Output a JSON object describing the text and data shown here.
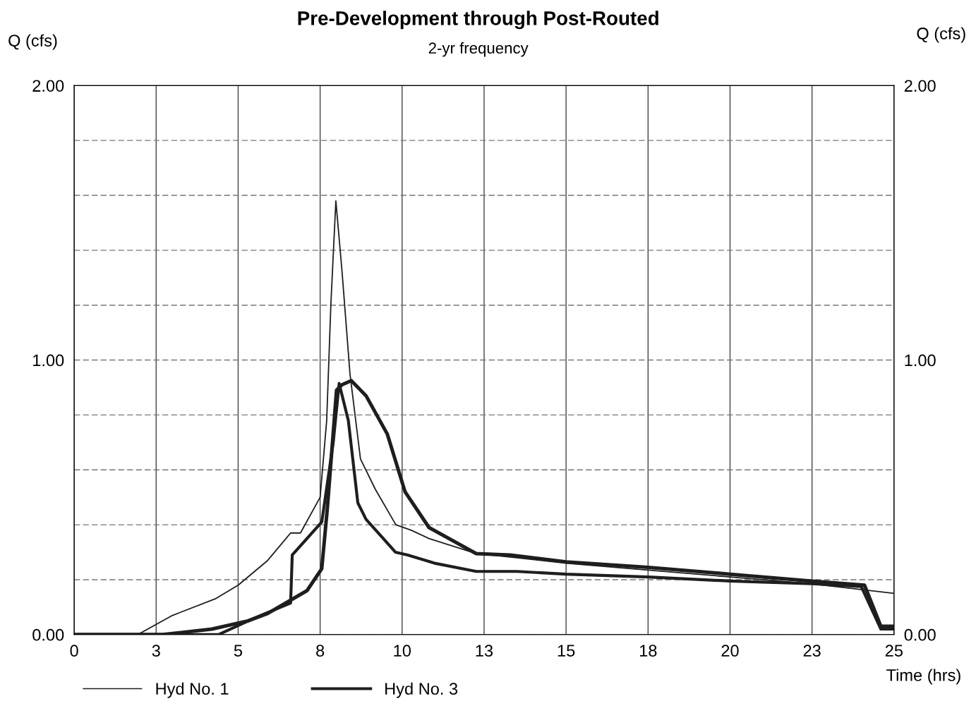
{
  "chart_data": {
    "type": "line",
    "title": "Pre-Development through Post-Routed",
    "subtitle": "2-yr frequency",
    "xlabel": "Time (hrs)",
    "ylabel": "Q (cfs)",
    "y2label": "Q (cfs)",
    "xlim": [
      0,
      25
    ],
    "xticks": [
      0,
      {
        "value": 2.5,
        "label": "3"
      },
      5,
      {
        "value": 7.5,
        "label": "8"
      },
      10,
      {
        "value": 12.5,
        "label": "13"
      },
      15,
      {
        "value": 17.5,
        "label": "18"
      },
      20,
      {
        "value": 22.5,
        "label": "23"
      },
      25
    ],
    "ylim": [
      0,
      2
    ],
    "yticks": [
      {
        "value": 0,
        "label": "0.00"
      },
      {
        "value": 0.2,
        "label": null
      },
      {
        "value": 0.4,
        "label": null
      },
      {
        "value": 0.6,
        "label": null
      },
      {
        "value": 0.8,
        "label": null
      },
      {
        "value": 1,
        "label": "1.00"
      },
      {
        "value": 1.2,
        "label": null
      },
      {
        "value": 1.4,
        "label": null
      },
      {
        "value": 1.6,
        "label": null
      },
      {
        "value": 1.8,
        "label": null
      },
      {
        "value": 2,
        "label": "2.00"
      }
    ],
    "y2lim": [
      0,
      2
    ],
    "y2ticks": [
      {
        "value": 0,
        "label": "0.00"
      },
      {
        "value": 1,
        "label": "1.00"
      },
      {
        "value": 2,
        "label": "2.00"
      }
    ],
    "grid": true,
    "legend": "bottom left",
    "marker": "none",
    "line_style": "solid",
    "series": [
      {
        "name": "Hyd No. 1",
        "color": "#1e1e1e",
        "x": [
          0,
          1.94,
          3.0,
          4.3,
          5.0,
          5.9,
          6.6,
          6.9,
          7.5,
          7.7,
          7.83,
          7.98,
          8.17,
          8.41,
          8.73,
          9.18,
          9.81,
          10.28,
          10.82,
          12.26,
          13.5,
          15,
          17.5,
          20,
          22.5,
          25
        ],
        "values": [
          0,
          0,
          0.07,
          0.13,
          0.18,
          0.27,
          0.37,
          0.37,
          0.5,
          0.78,
          1.21,
          1.58,
          1.32,
          0.95,
          0.64,
          0.53,
          0.4,
          0.38,
          0.35,
          0.295,
          0.28,
          0.26,
          0.235,
          0.21,
          0.185,
          0.15
        ]
      },
      {
        "color": "#1e1e1e",
        "x": [
          0,
          4.4,
          5.5,
          6.6,
          6.65,
          7.55,
          7.9,
          8.08,
          8.36,
          8.65,
          8.9,
          9.8,
          10.17,
          10.99,
          12.26,
          13.5,
          15,
          17.5,
          20,
          22.5,
          24.0,
          24.6,
          25
        ],
        "values": [
          0,
          0,
          0.06,
          0.115,
          0.29,
          0.41,
          0.7,
          0.915,
          0.78,
          0.48,
          0.42,
          0.3,
          0.29,
          0.26,
          0.23,
          0.23,
          0.22,
          0.21,
          0.195,
          0.185,
          0.175,
          0.02,
          0.02
        ]
      },
      {
        "name": "Hyd No. 3",
        "color": "#1e1e1e",
        "x": [
          0,
          2.7,
          4.2,
          5.3,
          5.9,
          7.1,
          7.55,
          7.72,
          8.0,
          8.17,
          8.45,
          8.9,
          9.55,
          10.09,
          10.82,
          12.26,
          13.3,
          15,
          17.5,
          20,
          22.5,
          24.1,
          24.6,
          25
        ],
        "values": [
          0,
          0,
          0.02,
          0.05,
          0.077,
          0.16,
          0.24,
          0.46,
          0.89,
          0.91,
          0.925,
          0.87,
          0.73,
          0.52,
          0.39,
          0.295,
          0.29,
          0.265,
          0.245,
          0.22,
          0.195,
          0.18,
          0.03,
          0.03
        ]
      }
    ]
  }
}
